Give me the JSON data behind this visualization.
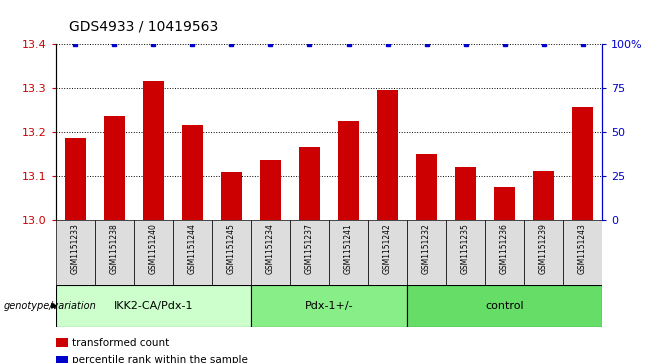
{
  "title": "GDS4933 / 10419563",
  "samples": [
    "GSM1151233",
    "GSM1151238",
    "GSM1151240",
    "GSM1151244",
    "GSM1151245",
    "GSM1151234",
    "GSM1151237",
    "GSM1151241",
    "GSM1151242",
    "GSM1151232",
    "GSM1151235",
    "GSM1151236",
    "GSM1151239",
    "GSM1151243"
  ],
  "bar_values": [
    13.185,
    13.235,
    13.315,
    13.215,
    13.108,
    13.135,
    13.165,
    13.225,
    13.295,
    13.148,
    13.12,
    13.075,
    13.11,
    13.255
  ],
  "percentile_values": [
    100,
    100,
    100,
    100,
    100,
    100,
    100,
    100,
    100,
    100,
    100,
    100,
    100,
    100
  ],
  "bar_color": "#cc0000",
  "dot_color": "#0000cc",
  "ylim_left": [
    13.0,
    13.4
  ],
  "ylim_right": [
    0,
    100
  ],
  "yticks_left": [
    13.0,
    13.1,
    13.2,
    13.3,
    13.4
  ],
  "yticks_right": [
    0,
    25,
    50,
    75,
    100
  ],
  "ytick_labels_right": [
    "0",
    "25",
    "50",
    "75",
    "100%"
  ],
  "groups": [
    {
      "label": "IKK2-CA/Pdx-1",
      "start": 0,
      "end": 5,
      "color": "#ccffcc"
    },
    {
      "label": "Pdx-1+/-",
      "start": 5,
      "end": 9,
      "color": "#88ee88"
    },
    {
      "label": "control",
      "start": 9,
      "end": 14,
      "color": "#66dd66"
    }
  ],
  "genotype_label": "genotype/variation",
  "legend_items": [
    {
      "label": "transformed count",
      "color": "#cc0000"
    },
    {
      "label": "percentile rank within the sample",
      "color": "#0000cc"
    }
  ],
  "grid_color": "#000000",
  "tick_label_color_left": "#cc0000",
  "tick_label_color_right": "#0000cc",
  "box_color": "#dddddd",
  "bar_width": 0.55
}
